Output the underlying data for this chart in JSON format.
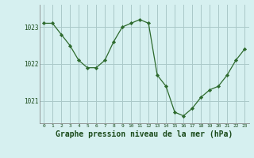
{
  "x": [
    0,
    1,
    2,
    3,
    4,
    5,
    6,
    7,
    8,
    9,
    10,
    11,
    12,
    13,
    14,
    15,
    16,
    17,
    18,
    19,
    20,
    21,
    22,
    23
  ],
  "y": [
    1023.1,
    1023.1,
    1022.8,
    1022.5,
    1022.1,
    1021.9,
    1021.9,
    1022.1,
    1022.6,
    1023.0,
    1023.1,
    1023.2,
    1023.1,
    1021.7,
    1021.4,
    1020.7,
    1020.6,
    1020.8,
    1021.1,
    1021.3,
    1021.4,
    1021.7,
    1022.1,
    1022.4
  ],
  "line_color": "#2d6a2d",
  "marker": "D",
  "marker_size": 2.2,
  "bg_color": "#d6f0f0",
  "grid_color": "#aac8c8",
  "xlabel": "Graphe pression niveau de la mer (hPa)",
  "xlabel_fontsize": 7,
  "yticks": [
    1021,
    1022,
    1023
  ],
  "xtick_labels": [
    "0",
    "1",
    "2",
    "3",
    "4",
    "5",
    "6",
    "7",
    "8",
    "9",
    "10",
    "11",
    "12",
    "13",
    "14",
    "15",
    "16",
    "17",
    "18",
    "19",
    "20",
    "21",
    "22",
    "23"
  ],
  "ylim": [
    1020.4,
    1023.6
  ],
  "xlim": [
    -0.5,
    23.5
  ]
}
